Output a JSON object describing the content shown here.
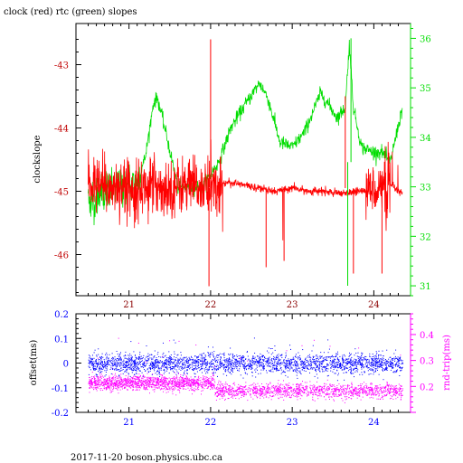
{
  "footer": "2017-11-20  boson.physics.ubc.ca",
  "colors": {
    "red": "#ff0000",
    "green": "#00dd00",
    "blue": "#0000ff",
    "magenta": "#ff00ff",
    "darkred": "#c00000"
  },
  "chart_data": [
    {
      "type": "line",
      "title": "clock (red) rtc (green) slopes",
      "ylabel_left": "clockslope",
      "x_ticks": [
        "21",
        "22",
        "23",
        "24"
      ],
      "x_tick_values": [
        21,
        22,
        23,
        24
      ],
      "xlim": [
        20.35,
        24.45
      ],
      "ylim_left": [
        -46.65,
        -42.35
      ],
      "y_ticks_left": [
        "-43",
        "-44",
        "-45",
        "-46"
      ],
      "y_tick_values_left": [
        -43,
        -44,
        -45,
        -46
      ],
      "ylim_right": [
        30.8,
        36.3
      ],
      "y_ticks_right": [
        "31",
        "32",
        "33",
        "34",
        "35",
        "36"
      ],
      "y_tick_values_right": [
        31,
        32,
        33,
        34,
        35,
        36
      ],
      "series": [
        {
          "name": "clock",
          "axis": "left",
          "color": "red",
          "x": [
            20.5,
            20.7,
            20.9,
            21.1,
            21.3,
            21.5,
            21.7,
            21.9,
            22.0,
            22.1,
            22.2,
            22.4,
            22.6,
            22.8,
            23.0,
            23.2,
            23.4,
            23.6,
            23.8,
            24.0,
            24.1,
            24.2,
            24.35
          ],
          "y": [
            -44.9,
            -44.95,
            -44.9,
            -44.95,
            -44.9,
            -44.95,
            -44.9,
            -44.95,
            -44.9,
            -44.95,
            -44.85,
            -44.9,
            -44.95,
            -45.0,
            -44.95,
            -45.0,
            -45.0,
            -45.05,
            -45.0,
            -44.95,
            -44.95,
            -44.9,
            -45.05
          ]
        },
        {
          "name": "rtc",
          "axis": "right",
          "color": "green",
          "x": [
            20.5,
            20.7,
            20.9,
            21.1,
            21.2,
            21.3,
            21.35,
            21.45,
            21.6,
            21.9,
            22.1,
            22.25,
            22.4,
            22.6,
            22.7,
            22.85,
            23.0,
            23.15,
            23.35,
            23.55,
            23.65,
            23.7,
            23.75,
            23.85,
            24.0,
            24.1,
            24.2,
            24.35
          ],
          "y": [
            32.7,
            32.9,
            33.0,
            33.1,
            33.6,
            34.7,
            34.8,
            34.1,
            33.0,
            33.0,
            33.5,
            34.2,
            34.6,
            35.1,
            34.8,
            33.9,
            33.8,
            34.1,
            34.9,
            34.4,
            34.6,
            35.9,
            34.6,
            33.8,
            33.7,
            33.7,
            33.5,
            34.6
          ]
        }
      ],
      "spikes": [
        {
          "series": "clock",
          "x": 22.0,
          "y": -42.6
        },
        {
          "series": "clock",
          "x": 21.98,
          "y": -46.5
        },
        {
          "series": "clock",
          "x": 22.68,
          "y": -46.2
        },
        {
          "series": "clock",
          "x": 22.9,
          "y": -46.1
        },
        {
          "series": "clock",
          "x": 23.75,
          "y": -46.3
        },
        {
          "series": "clock",
          "x": 24.1,
          "y": -46.3
        },
        {
          "series": "clock",
          "x": 23.65,
          "y": -43.5
        },
        {
          "series": "rtc",
          "x": 23.68,
          "y": 31.0
        },
        {
          "series": "rtc",
          "x": 23.72,
          "y": 36.0
        }
      ]
    },
    {
      "type": "scatter",
      "ylabel_left": "offset(ms)",
      "ylabel_right": "rnd-trip(ms)",
      "x_ticks": [
        "21",
        "22",
        "23",
        "24"
      ],
      "x_tick_values": [
        21,
        22,
        23,
        24
      ],
      "xlim": [
        20.35,
        24.45
      ],
      "ylim_left": [
        -0.2,
        0.2
      ],
      "y_ticks_left": [
        "0.2",
        "0.1",
        "0",
        "-0.1",
        "-0.2"
      ],
      "y_tick_values_left": [
        0.2,
        0.1,
        0,
        -0.1,
        -0.2
      ],
      "ylim_right": [
        0.1,
        0.48
      ],
      "y_ticks_right": [
        "0.2",
        "0.3",
        "0.4"
      ],
      "y_tick_values_right": [
        0.2,
        0.3,
        0.4
      ],
      "series": [
        {
          "name": "offset",
          "axis": "left",
          "color": "blue",
          "x_range": [
            20.5,
            24.35
          ],
          "center": 0.0,
          "spread": 0.02
        },
        {
          "name": "rnd-trip",
          "axis": "right",
          "color": "magenta",
          "segments": [
            {
              "x_range": [
                20.5,
                22.05
              ],
              "center": 0.215,
              "spread": 0.014
            },
            {
              "x_range": [
                22.05,
                24.35
              ],
              "center": 0.185,
              "spread": 0.014
            }
          ]
        }
      ]
    }
  ]
}
